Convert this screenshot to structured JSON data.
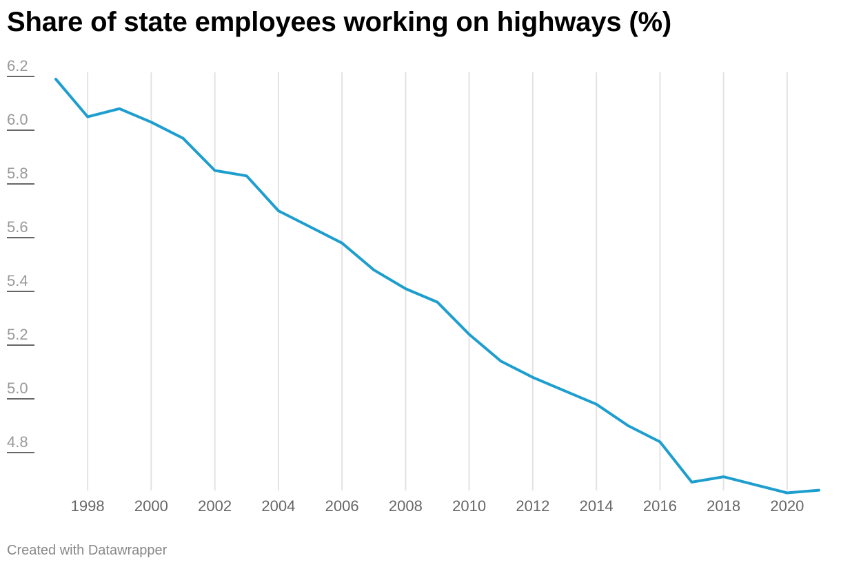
{
  "title": "Share of state employees working on highways (%)",
  "credit": "Created with Datawrapper",
  "chart_data": {
    "type": "line",
    "title": "Share of state employees working on highways (%)",
    "xlabel": "",
    "ylabel": "",
    "x": [
      1997,
      1998,
      1999,
      2000,
      2001,
      2002,
      2003,
      2004,
      2005,
      2006,
      2007,
      2008,
      2009,
      2010,
      2011,
      2012,
      2013,
      2014,
      2015,
      2016,
      2017,
      2018,
      2019,
      2020,
      2021
    ],
    "series": [
      {
        "values": [
          6.19,
          6.05,
          6.08,
          6.03,
          5.97,
          5.85,
          5.83,
          5.7,
          5.64,
          5.58,
          5.48,
          5.41,
          5.36,
          5.24,
          5.14,
          5.08,
          5.03,
          4.98,
          4.9,
          4.84,
          4.69,
          4.71,
          4.68,
          4.65,
          4.66
        ]
      }
    ],
    "xticks": [
      "1998",
      "2000",
      "2002",
      "2004",
      "2006",
      "2008",
      "2010",
      "2012",
      "2014",
      "2016",
      "2018",
      "2020"
    ],
    "yticks": [
      "6.2",
      "6.0",
      "5.8",
      "5.6",
      "5.4",
      "5.2",
      "5.0",
      "4.8"
    ],
    "xlim": [
      1997,
      2021
    ],
    "ylim": [
      4.65,
      6.2
    ],
    "grid": "vertical",
    "legend": "none",
    "line_color": "#1d9ece",
    "grid_color": "#e2e2e2",
    "tick_mark_color": "#333333"
  }
}
